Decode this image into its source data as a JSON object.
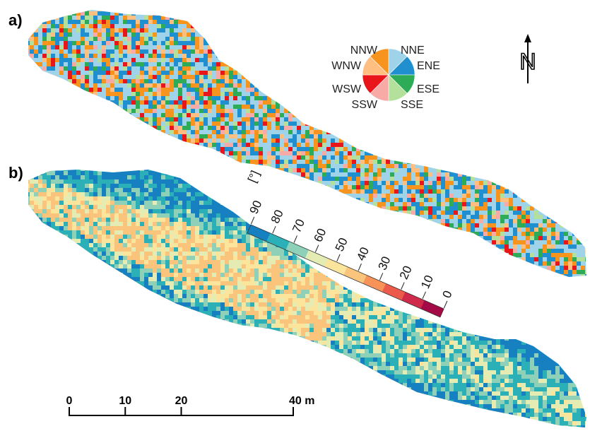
{
  "panels": [
    {
      "label": "a)"
    },
    {
      "label": "b)"
    }
  ],
  "aspect_classes": {
    "directions": [
      "NNE",
      "ENE",
      "ESE",
      "SSE",
      "SSW",
      "WSW",
      "WNW",
      "NNW"
    ],
    "colors": [
      "#9fd3ea",
      "#1f8fd0",
      "#2eab57",
      "#b3e09a",
      "#f7aaa6",
      "#e8161b",
      "#ffbf80",
      "#f7941d"
    ]
  },
  "slope_legend": {
    "unit": "[°]",
    "ticks": [
      "90",
      "80",
      "70",
      "60",
      "50",
      "40",
      "30",
      "20",
      "10",
      "0"
    ],
    "tick_values": [
      90,
      80,
      70,
      60,
      50,
      40,
      30,
      20,
      10,
      0
    ],
    "colors": [
      "#1680c0",
      "#2bb0b8",
      "#8fd1b8",
      "#e4ecb4",
      "#fbe49c",
      "#fbc47c",
      "#f79258",
      "#ec5a4c",
      "#cf2a4c",
      "#a30a46"
    ]
  },
  "north_arrow": {
    "label": "N",
    "icon": "north-arrow-icon"
  },
  "scale_bar": {
    "ticks": [
      "0",
      "10",
      "20",
      "40 m"
    ],
    "tick_values": [
      0,
      10,
      20,
      40
    ],
    "unit": "m"
  }
}
